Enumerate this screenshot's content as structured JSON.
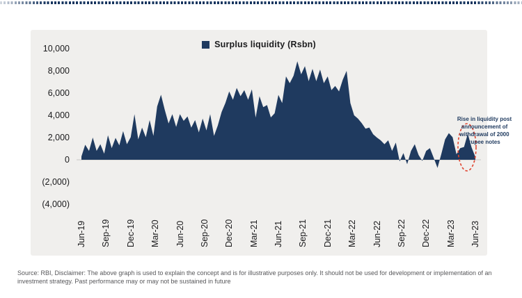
{
  "legend": {
    "label": "Surplus liquidity (Rsbn)",
    "swatch_color": "#1f3a5f"
  },
  "y_axis": {
    "labels": [
      "10,000",
      "8,000",
      "6,000",
      "4,000",
      "2,000",
      "0",
      "(2,000)",
      "(4,000)"
    ],
    "values": [
      10000,
      8000,
      6000,
      4000,
      2000,
      0,
      -2000,
      -4000
    ]
  },
  "x_axis": {
    "labels": [
      "Jun-19",
      "Sep-19",
      "Dec-19",
      "Mar-20",
      "Jun-20",
      "Sep-20",
      "Dec-20",
      "Mar-21",
      "Jun-21",
      "Sep-21",
      "Dec-21",
      "Mar-22",
      "Jun-22",
      "Sep-22",
      "Dec-22",
      "Mar-23",
      "Jun-23"
    ]
  },
  "annotation": {
    "text": "Rise in liquidity post announcement of withdrawal of 2000 rupee notes",
    "text_color": "#1f3a5f",
    "ellipse_color": "#e0432e"
  },
  "footer": {
    "text": "Source: RBI, Disclaimer: The above graph is used to explain the concept and is for illustrative purposes only. It should not be used for development or implementation of an investment strategy. Past performance may or may not be sustained in future"
  },
  "chart_data": {
    "type": "area",
    "title": "Surplus liquidity (Rsbn)",
    "ylabel": "Rsbn",
    "ylim": [
      -4000,
      10000
    ],
    "y_ticks": [
      10000,
      8000,
      6000,
      4000,
      2000,
      0,
      -2000,
      -4000
    ],
    "x_tick_labels": [
      "Jun-19",
      "Sep-19",
      "Dec-19",
      "Mar-20",
      "Jun-20",
      "Sep-20",
      "Dec-20",
      "Mar-21",
      "Jun-21",
      "Sep-21",
      "Dec-21",
      "Mar-22",
      "Jun-22",
      "Sep-22",
      "Dec-22",
      "Mar-23",
      "Jun-23"
    ],
    "grid": false,
    "legend_position": "top-center",
    "cadence": "biweekly from Jun-2019 to Jun-2023",
    "series": [
      {
        "name": "Surplus liquidity (Rsbn)",
        "color": "#1f3a5f",
        "values": [
          300,
          1350,
          800,
          2000,
          800,
          1400,
          550,
          2200,
          1050,
          1970,
          1300,
          2580,
          1400,
          2030,
          4100,
          1840,
          2890,
          2030,
          3570,
          2150,
          4800,
          5850,
          4500,
          3270,
          4100,
          2950,
          4100,
          3500,
          3900,
          2890,
          3570,
          2460,
          3700,
          2640,
          4100,
          2150,
          3075,
          4300,
          5100,
          6150,
          5400,
          6460,
          5720,
          6270,
          5400,
          6340,
          3800,
          5720,
          4730,
          4920,
          3810,
          4180,
          5840,
          5100,
          7500,
          6890,
          7560,
          8860,
          7690,
          8420,
          7070,
          8180,
          7070,
          8120,
          6890,
          7500,
          6270,
          6640,
          6150,
          7200,
          8000,
          5100,
          4000,
          3700,
          3300,
          2800,
          2900,
          2300,
          2000,
          1750,
          1400,
          1750,
          800,
          1550,
          -150,
          600,
          -400,
          800,
          1400,
          430,
          -100,
          800,
          1050,
          180,
          -740,
          500,
          1840,
          2400,
          2030,
          500,
          1050,
          1150,
          2340,
          1100,
          250
        ]
      }
    ],
    "annotation": {
      "text": "Rise in liquidity post announcement of withdrawal of 2000 rupee notes",
      "highlighted_period": "May-2023 to Jun-2023",
      "highlight_peak_value": 2340
    }
  }
}
